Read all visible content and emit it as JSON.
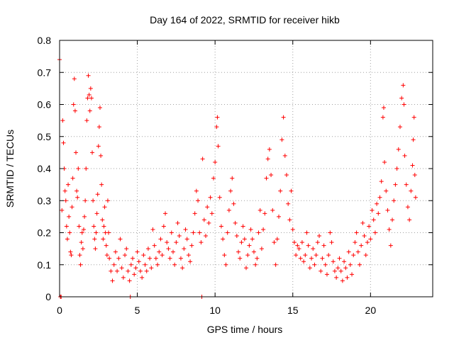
{
  "chart_data": {
    "type": "scatter",
    "title": "Day 164 of 2022, SRMTID for receiver hikb",
    "xlabel": "GPS time / hours",
    "ylabel": "SRMTID / TECUs",
    "xlim": [
      0,
      24
    ],
    "ylim": [
      0,
      0.8
    ],
    "xticks": [
      0,
      5,
      10,
      15,
      20
    ],
    "xtick_labels": [
      "0",
      "5",
      "10",
      "15",
      "20"
    ],
    "yticks": [
      0,
      0.1,
      0.2,
      0.3,
      0.4,
      0.5,
      0.6,
      0.7,
      0.8
    ],
    "ytick_labels": [
      "0",
      "0.1",
      "0.2",
      "0.3",
      "0.4",
      "0.5",
      "0.6",
      "0.7",
      "0.8"
    ],
    "grid": true,
    "marker": "+",
    "series": [
      {
        "name": "SRMTID",
        "color": "#ff0000",
        "points": [
          [
            0.0,
            0.74
          ],
          [
            0.05,
            0.0
          ],
          [
            0.1,
            0.0
          ],
          [
            0.15,
            0.27
          ],
          [
            0.2,
            0.55
          ],
          [
            0.25,
            0.48
          ],
          [
            0.3,
            0.4
          ],
          [
            0.35,
            0.33
          ],
          [
            0.4,
            0.3
          ],
          [
            0.45,
            0.22
          ],
          [
            0.5,
            0.18
          ],
          [
            0.55,
            0.35
          ],
          [
            0.6,
            0.25
          ],
          [
            0.65,
            0.2
          ],
          [
            0.7,
            0.14
          ],
          [
            0.75,
            0.13
          ],
          [
            0.8,
            0.28
          ],
          [
            0.85,
            0.37
          ],
          [
            0.9,
            0.6
          ],
          [
            0.95,
            0.68
          ],
          [
            1.0,
            0.58
          ],
          [
            1.05,
            0.45
          ],
          [
            1.1,
            0.33
          ],
          [
            1.15,
            0.31
          ],
          [
            1.2,
            0.4
          ],
          [
            1.25,
            0.22
          ],
          [
            1.3,
            0.13
          ],
          [
            1.35,
            0.1
          ],
          [
            1.4,
            0.17
          ],
          [
            1.45,
            0.2
          ],
          [
            1.5,
            0.15
          ],
          [
            1.55,
            0.21
          ],
          [
            1.6,
            0.25
          ],
          [
            1.65,
            0.3
          ],
          [
            1.7,
            0.4
          ],
          [
            1.75,
            0.55
          ],
          [
            1.8,
            0.62
          ],
          [
            1.85,
            0.69
          ],
          [
            1.9,
            0.63
          ],
          [
            1.95,
            0.58
          ],
          [
            2.0,
            0.65
          ],
          [
            2.05,
            0.62
          ],
          [
            2.1,
            0.45
          ],
          [
            2.15,
            0.3
          ],
          [
            2.2,
            0.22
          ],
          [
            2.25,
            0.18
          ],
          [
            2.3,
            0.15
          ],
          [
            2.35,
            0.2
          ],
          [
            2.4,
            0.26
          ],
          [
            2.45,
            0.32
          ],
          [
            2.5,
            0.47
          ],
          [
            2.55,
            0.53
          ],
          [
            2.6,
            0.59
          ],
          [
            2.65,
            0.44
          ],
          [
            2.7,
            0.35
          ],
          [
            2.75,
            0.24
          ],
          [
            2.8,
            0.18
          ],
          [
            2.85,
            0.22
          ],
          [
            2.9,
            0.28
          ],
          [
            2.95,
            0.2
          ],
          [
            3.0,
            0.16
          ],
          [
            3.05,
            0.13
          ],
          [
            3.1,
            0.3
          ],
          [
            3.15,
            0.2
          ],
          [
            3.2,
            0.12
          ],
          [
            3.3,
            0.08
          ],
          [
            3.4,
            0.05
          ],
          [
            3.5,
            0.1
          ],
          [
            3.6,
            0.14
          ],
          [
            3.7,
            0.08
          ],
          [
            3.8,
            0.12
          ],
          [
            3.9,
            0.18
          ],
          [
            4.0,
            0.09
          ],
          [
            4.1,
            0.06
          ],
          [
            4.2,
            0.13
          ],
          [
            4.3,
            0.15
          ],
          [
            4.4,
            0.08
          ],
          [
            4.5,
            0.05
          ],
          [
            4.55,
            0.0
          ],
          [
            4.6,
            0.1
          ],
          [
            4.7,
            0.12
          ],
          [
            4.8,
            0.07
          ],
          [
            4.9,
            0.09
          ],
          [
            5.0,
            0.14
          ],
          [
            5.1,
            0.11
          ],
          [
            5.2,
            0.08
          ],
          [
            5.3,
            0.06
          ],
          [
            5.4,
            0.13
          ],
          [
            5.5,
            0.1
          ],
          [
            5.6,
            0.08
          ],
          [
            5.7,
            0.15
          ],
          [
            5.8,
            0.12
          ],
          [
            5.9,
            0.09
          ],
          [
            6.0,
            0.21
          ],
          [
            6.1,
            0.16
          ],
          [
            6.2,
            0.12
          ],
          [
            6.3,
            0.1
          ],
          [
            6.4,
            0.14
          ],
          [
            6.5,
            0.18
          ],
          [
            6.6,
            0.13
          ],
          [
            6.7,
            0.22
          ],
          [
            6.8,
            0.26
          ],
          [
            6.9,
            0.17
          ],
          [
            7.0,
            0.15
          ],
          [
            7.1,
            0.12
          ],
          [
            7.2,
            0.2
          ],
          [
            7.3,
            0.14
          ],
          [
            7.4,
            0.1
          ],
          [
            7.5,
            0.17
          ],
          [
            7.6,
            0.23
          ],
          [
            7.7,
            0.19
          ],
          [
            7.8,
            0.12
          ],
          [
            7.9,
            0.09
          ],
          [
            8.0,
            0.15
          ],
          [
            8.1,
            0.21
          ],
          [
            8.2,
            0.18
          ],
          [
            8.3,
            0.13
          ],
          [
            8.4,
            0.11
          ],
          [
            8.5,
            0.16
          ],
          [
            8.6,
            0.2
          ],
          [
            8.7,
            0.26
          ],
          [
            8.8,
            0.33
          ],
          [
            8.9,
            0.3
          ],
          [
            9.0,
            0.2
          ],
          [
            9.1,
            0.17
          ],
          [
            9.15,
            0.0
          ],
          [
            9.2,
            0.43
          ],
          [
            9.3,
            0.24
          ],
          [
            9.4,
            0.19
          ],
          [
            9.5,
            0.28
          ],
          [
            9.6,
            0.23
          ],
          [
            9.7,
            0.31
          ],
          [
            9.8,
            0.26
          ],
          [
            9.9,
            0.37
          ],
          [
            10.0,
            0.42
          ],
          [
            10.1,
            0.53
          ],
          [
            10.15,
            0.56
          ],
          [
            10.2,
            0.47
          ],
          [
            10.3,
            0.31
          ],
          [
            10.4,
            0.22
          ],
          [
            10.5,
            0.18
          ],
          [
            10.6,
            0.13
          ],
          [
            10.7,
            0.1
          ],
          [
            10.8,
            0.2
          ],
          [
            10.9,
            0.27
          ],
          [
            11.0,
            0.33
          ],
          [
            11.1,
            0.37
          ],
          [
            11.2,
            0.29
          ],
          [
            11.3,
            0.23
          ],
          [
            11.4,
            0.19
          ],
          [
            11.5,
            0.14
          ],
          [
            11.6,
            0.12
          ],
          [
            11.7,
            0.17
          ],
          [
            11.8,
            0.22
          ],
          [
            11.9,
            0.18
          ],
          [
            12.0,
            0.09
          ],
          [
            12.1,
            0.13
          ],
          [
            12.2,
            0.16
          ],
          [
            12.3,
            0.21
          ],
          [
            12.4,
            0.18
          ],
          [
            12.5,
            0.14
          ],
          [
            12.6,
            0.1
          ],
          [
            12.7,
            0.12
          ],
          [
            12.8,
            0.2
          ],
          [
            12.9,
            0.27
          ],
          [
            13.0,
            0.15
          ],
          [
            13.1,
            0.21
          ],
          [
            13.2,
            0.26
          ],
          [
            13.3,
            0.37
          ],
          [
            13.4,
            0.43
          ],
          [
            13.5,
            0.46
          ],
          [
            13.6,
            0.38
          ],
          [
            13.7,
            0.27
          ],
          [
            13.8,
            0.17
          ],
          [
            13.9,
            0.1
          ],
          [
            14.0,
            0.18
          ],
          [
            14.1,
            0.25
          ],
          [
            14.2,
            0.33
          ],
          [
            14.3,
            0.49
          ],
          [
            14.4,
            0.56
          ],
          [
            14.5,
            0.44
          ],
          [
            14.6,
            0.38
          ],
          [
            14.7,
            0.29
          ],
          [
            14.8,
            0.24
          ],
          [
            14.9,
            0.33
          ],
          [
            15.0,
            0.21
          ],
          [
            15.1,
            0.17
          ],
          [
            15.2,
            0.13
          ],
          [
            15.3,
            0.16
          ],
          [
            15.4,
            0.15
          ],
          [
            15.5,
            0.12
          ],
          [
            15.6,
            0.17
          ],
          [
            15.7,
            0.11
          ],
          [
            15.8,
            0.13
          ],
          [
            15.9,
            0.2
          ],
          [
            16.0,
            0.16
          ],
          [
            16.1,
            0.09
          ],
          [
            16.2,
            0.12
          ],
          [
            16.3,
            0.15
          ],
          [
            16.4,
            0.1
          ],
          [
            16.5,
            0.13
          ],
          [
            16.6,
            0.17
          ],
          [
            16.7,
            0.19
          ],
          [
            16.8,
            0.08
          ],
          [
            16.9,
            0.12
          ],
          [
            17.0,
            0.16
          ],
          [
            17.1,
            0.1
          ],
          [
            17.2,
            0.07
          ],
          [
            17.3,
            0.13
          ],
          [
            17.4,
            0.2
          ],
          [
            17.5,
            0.17
          ],
          [
            17.6,
            0.11
          ],
          [
            17.7,
            0.08
          ],
          [
            17.8,
            0.06
          ],
          [
            17.9,
            0.09
          ],
          [
            18.0,
            0.12
          ],
          [
            18.1,
            0.08
          ],
          [
            18.2,
            0.05
          ],
          [
            18.3,
            0.11
          ],
          [
            18.4,
            0.09
          ],
          [
            18.5,
            0.06
          ],
          [
            18.6,
            0.14
          ],
          [
            18.7,
            0.1
          ],
          [
            18.8,
            0.07
          ],
          [
            18.9,
            0.13
          ],
          [
            19.0,
            0.17
          ],
          [
            19.1,
            0.2
          ],
          [
            19.2,
            0.14
          ],
          [
            19.3,
            0.1
          ],
          [
            19.4,
            0.16
          ],
          [
            19.5,
            0.23
          ],
          [
            19.6,
            0.19
          ],
          [
            19.7,
            0.13
          ],
          [
            19.8,
            0.17
          ],
          [
            19.9,
            0.22
          ],
          [
            20.0,
            0.18
          ],
          [
            20.1,
            0.27
          ],
          [
            20.2,
            0.24
          ],
          [
            20.3,
            0.2
          ],
          [
            20.4,
            0.29
          ],
          [
            20.5,
            0.26
          ],
          [
            20.6,
            0.31
          ],
          [
            20.7,
            0.36
          ],
          [
            20.8,
            0.56
          ],
          [
            20.85,
            0.59
          ],
          [
            20.9,
            0.42
          ],
          [
            21.0,
            0.33
          ],
          [
            21.1,
            0.27
          ],
          [
            21.2,
            0.21
          ],
          [
            21.3,
            0.16
          ],
          [
            21.4,
            0.24
          ],
          [
            21.5,
            0.3
          ],
          [
            21.6,
            0.35
          ],
          [
            21.7,
            0.4
          ],
          [
            21.8,
            0.46
          ],
          [
            21.9,
            0.53
          ],
          [
            22.0,
            0.62
          ],
          [
            22.1,
            0.66
          ],
          [
            22.15,
            0.6
          ],
          [
            22.2,
            0.44
          ],
          [
            22.3,
            0.35
          ],
          [
            22.4,
            0.28
          ],
          [
            22.5,
            0.24
          ],
          [
            22.6,
            0.33
          ],
          [
            22.7,
            0.41
          ],
          [
            22.75,
            0.49
          ],
          [
            22.8,
            0.56
          ],
          [
            22.85,
            0.38
          ],
          [
            22.9,
            0.31
          ]
        ]
      }
    ]
  }
}
